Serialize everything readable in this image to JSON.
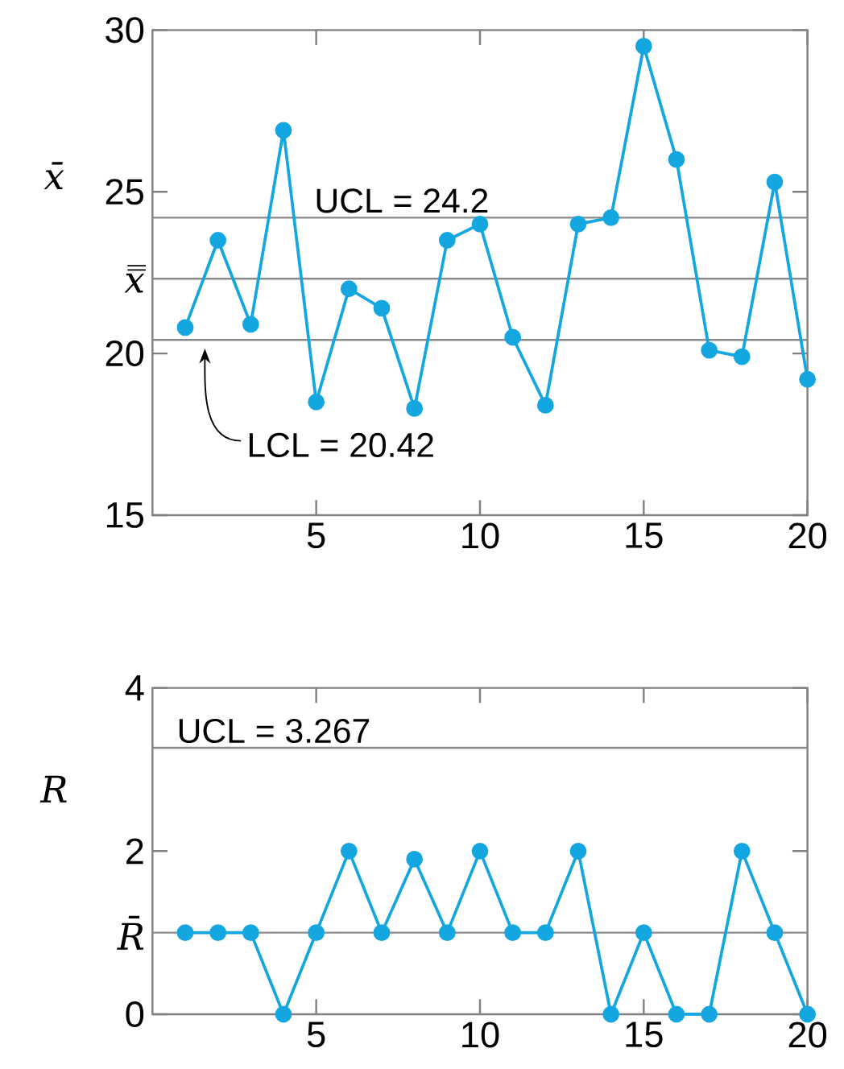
{
  "chart_data": [
    {
      "type": "line",
      "ylabel": "x̄",
      "x": [
        1,
        2,
        3,
        4,
        5,
        6,
        7,
        8,
        9,
        10,
        11,
        12,
        13,
        14,
        15,
        16,
        17,
        18,
        19,
        20
      ],
      "values": [
        20.8,
        23.5,
        20.9,
        26.9,
        18.5,
        22.0,
        21.4,
        18.3,
        23.5,
        24.0,
        20.5,
        18.4,
        24.0,
        24.2,
        29.5,
        26.0,
        20.1,
        19.9,
        25.3,
        19.2
      ],
      "color": "#14a6e0",
      "marker": "circle",
      "line_style": "solid",
      "grid": false,
      "xlim": [
        0,
        20
      ],
      "ylim": [
        15,
        30
      ],
      "xticks": [
        5,
        10,
        15,
        20
      ],
      "yticks": [
        15,
        20,
        25,
        30
      ],
      "ref_lines": [
        {
          "axis": "y",
          "value": 24.2,
          "label": "UCL = 24.2"
        },
        {
          "axis": "y",
          "value": 22.31,
          "label": "x̿"
        },
        {
          "axis": "y",
          "value": 20.42,
          "label": "LCL = 20.42"
        }
      ]
    },
    {
      "type": "line",
      "ylabel": "R",
      "x": [
        1,
        2,
        3,
        4,
        5,
        6,
        7,
        8,
        9,
        10,
        11,
        12,
        13,
        14,
        15,
        16,
        17,
        18,
        19,
        20
      ],
      "values": [
        1,
        1,
        1,
        0,
        1,
        2,
        1,
        1.9,
        1,
        2,
        1,
        1,
        2,
        0,
        1,
        0,
        0,
        2,
        1,
        0
      ],
      "color": "#14a6e0",
      "marker": "circle",
      "line_style": "solid",
      "grid": false,
      "xlim": [
        0,
        20
      ],
      "ylim": [
        0,
        4
      ],
      "xticks": [
        5,
        10,
        15,
        20
      ],
      "yticks": [
        0,
        2,
        4
      ],
      "ref_lines": [
        {
          "axis": "y",
          "value": 3.267,
          "label": "UCL = 3.267"
        },
        {
          "axis": "y",
          "value": 1,
          "label": "R̄"
        }
      ]
    }
  ]
}
